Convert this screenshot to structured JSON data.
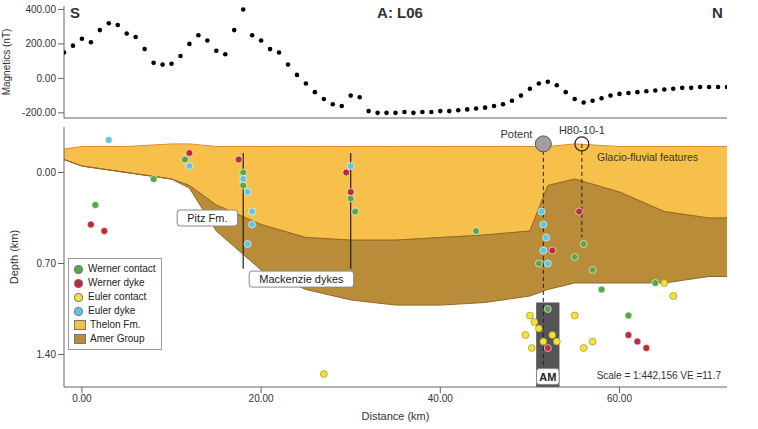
{
  "chart_data": [
    {
      "type": "scatter",
      "title": "A: L06",
      "direction_labels": {
        "left": "S",
        "right": "N"
      },
      "y_label": "Magnetics (nT)",
      "color": "#000000",
      "marker": "circle",
      "grid": false,
      "tick_labels": "y",
      "xlim": [
        -2,
        72
      ],
      "ylim": [
        -230,
        420
      ],
      "yticks": [
        {
          "value": -200,
          "label": "-200.00"
        },
        {
          "value": 0,
          "label": "0.00"
        },
        {
          "value": 200,
          "label": "200.00"
        },
        {
          "value": 400,
          "label": "400.00"
        }
      ],
      "x": [
        -2,
        -1,
        0,
        1,
        2,
        3,
        4,
        5,
        6,
        7,
        8,
        9,
        10,
        11,
        12,
        13,
        14,
        15,
        16,
        17,
        18,
        19,
        20,
        21,
        22,
        23,
        24,
        25,
        26,
        27,
        28,
        29,
        30,
        31,
        32,
        33,
        34,
        35,
        36,
        37,
        38,
        39,
        40,
        41,
        42,
        43,
        44,
        45,
        46,
        47,
        48,
        49,
        50,
        51,
        52,
        53,
        54,
        55,
        56,
        57,
        58,
        59,
        60,
        61,
        62,
        63,
        64,
        65,
        66,
        67,
        68,
        69,
        70,
        71,
        72
      ],
      "values": [
        150,
        190,
        230,
        210,
        280,
        320,
        310,
        260,
        240,
        170,
        90,
        80,
        85,
        130,
        200,
        250,
        220,
        160,
        140,
        280,
        400,
        250,
        220,
        170,
        150,
        80,
        20,
        -30,
        -80,
        -120,
        -150,
        -160,
        -100,
        -110,
        -190,
        -200,
        -200,
        -200,
        -195,
        -200,
        -195,
        -195,
        -190,
        -190,
        -185,
        -180,
        -175,
        -170,
        -160,
        -150,
        -130,
        -100,
        -60,
        -30,
        -20,
        -40,
        -80,
        -120,
        -140,
        -130,
        -115,
        -100,
        -90,
        -85,
        -80,
        -75,
        -70,
        -65,
        -60,
        -55,
        -55,
        -50,
        -50,
        -50,
        -50
      ]
    },
    {
      "type": "cross_section",
      "x_label": "Distance (km)",
      "y_label": "Depth (km)",
      "grid": false,
      "legend": "lower left",
      "xlim": [
        -2,
        72
      ],
      "ylim": [
        -0.35,
        1.65
      ],
      "xticks": [
        {
          "value": 0,
          "label": "0.00"
        },
        {
          "value": 20,
          "label": "20.00"
        },
        {
          "value": 40,
          "label": "40.00"
        },
        {
          "value": 60,
          "label": "60.00"
        }
      ],
      "yticks": [
        {
          "value": 0,
          "label": "0.00"
        },
        {
          "value": 0.7,
          "label": "0.70"
        },
        {
          "value": 1.4,
          "label": "1.40"
        }
      ],
      "layers_x": [
        -2,
        0,
        5,
        10,
        12,
        15,
        20,
        25,
        30,
        35,
        40,
        45,
        50,
        52,
        55,
        60,
        65,
        70,
        72
      ],
      "layers": [
        {
          "name": "Thelon Fm.",
          "color": "#f7c04b",
          "top": [
            -0.18,
            -0.2,
            -0.2,
            -0.22,
            -0.22,
            -0.2,
            -0.2,
            -0.2,
            -0.2,
            -0.2,
            -0.2,
            -0.2,
            -0.2,
            -0.2,
            -0.22,
            -0.2,
            -0.2,
            -0.2,
            -0.2
          ],
          "bottom": [
            -0.1,
            -0.05,
            0.0,
            0.05,
            0.1,
            0.25,
            0.4,
            0.5,
            0.52,
            0.52,
            0.5,
            0.48,
            0.45,
            0.1,
            0.05,
            0.15,
            0.3,
            0.35,
            0.35
          ]
        },
        {
          "name": "Amer Group",
          "color": "#b98c3a",
          "top": [
            -0.1,
            -0.05,
            0.0,
            0.05,
            0.1,
            0.25,
            0.4,
            0.5,
            0.52,
            0.52,
            0.5,
            0.48,
            0.45,
            0.1,
            0.05,
            0.15,
            0.3,
            0.35,
            0.35
          ],
          "bottom": [
            -0.1,
            -0.05,
            0.0,
            0.05,
            0.12,
            0.45,
            0.75,
            0.9,
            0.98,
            1.02,
            1.02,
            1.0,
            0.95,
            0.9,
            0.85,
            0.85,
            0.85,
            0.8,
            0.8
          ]
        }
      ],
      "series": [
        {
          "name": "Werner contact",
          "color": "#5aa64a",
          "marker": "circle",
          "x": [
            1.5,
            8,
            11.5,
            18,
            18,
            30,
            30.5,
            44,
            51,
            52,
            55,
            56,
            57,
            58,
            64,
            61
          ],
          "values": [
            0.25,
            0.05,
            -0.1,
            0.0,
            0.1,
            0.2,
            0.3,
            0.45,
            0.7,
            1.05,
            0.65,
            0.55,
            0.75,
            0.9,
            0.85,
            1.1
          ]
        },
        {
          "name": "Werner dyke",
          "color": "#c0283c",
          "marker": "circle",
          "x": [
            1,
            2.5,
            12,
            17.5,
            29.5,
            30,
            52.5,
            55.5,
            61,
            62,
            63,
            52
          ],
          "values": [
            0.4,
            0.45,
            -0.15,
            -0.1,
            0.0,
            0.15,
            0.6,
            0.3,
            1.25,
            1.3,
            1.35,
            1.35
          ]
        },
        {
          "name": "Euler contact",
          "color": "#f0e040",
          "marker": "circle",
          "x": [
            50,
            50.5,
            51,
            49.5,
            51.5,
            50.2,
            52.5,
            53,
            55,
            57,
            56,
            65,
            66,
            27
          ],
          "values": [
            1.1,
            1.15,
            1.2,
            1.25,
            1.3,
            1.35,
            1.25,
            1.3,
            1.1,
            1.3,
            1.35,
            0.85,
            0.95,
            1.55
          ]
        },
        {
          "name": "Euler dyke",
          "color": "#5ec8e0",
          "marker": "circle",
          "x": [
            3,
            12,
            18,
            18.5,
            19,
            19,
            18.5,
            30,
            51.5,
            51.8,
            51.5,
            52,
            51.3
          ],
          "values": [
            -0.25,
            -0.05,
            0.05,
            0.15,
            0.3,
            0.4,
            0.55,
            -0.05,
            0.4,
            0.5,
            0.6,
            0.7,
            0.3
          ]
        }
      ],
      "am_body": {
        "label": "AM",
        "x": [
          50.7,
          53.3
        ],
        "depth": [
          1.0,
          1.65
        ],
        "label_x": 52,
        "label_y": 1.57
      },
      "drill_holes": [
        {
          "label": "Potent",
          "x": 51.5,
          "depth": [
            -0.22,
            1.6
          ]
        },
        {
          "label": "H80-10-1",
          "x": 55.8,
          "depth": [
            -0.22,
            0.5
          ]
        }
      ],
      "dykes": {
        "label": "Mackenzie dykes",
        "x": [
          18,
          30
        ],
        "depth": [
          -0.15,
          0.74
        ],
        "label_x": 24.5,
        "label_y": 0.82
      },
      "annotations": [
        {
          "text": "Pitz Fm.",
          "x": 14,
          "y": 0.35
        },
        {
          "text": "Glacio-fluvial features",
          "x": 57.5,
          "y": -0.12
        }
      ],
      "scale_note": "Scale = 1:442,156 VE =11.7"
    }
  ]
}
